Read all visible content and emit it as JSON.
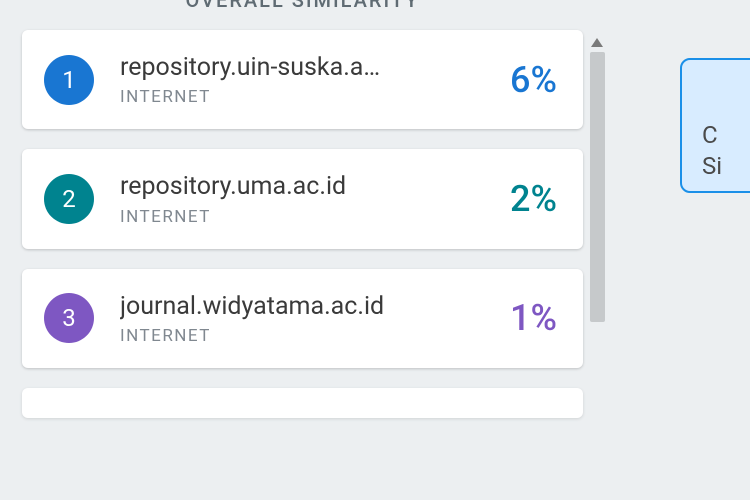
{
  "header": {
    "title": "OVERALL SIMILARITY"
  },
  "sources": [
    {
      "rank": "1",
      "url": "repository.uin-suska.a…",
      "type": "INTERNET",
      "percent": "6%",
      "badge_color": "#1976d2",
      "percent_color": "#1976d2"
    },
    {
      "rank": "2",
      "url": "repository.uma.ac.id",
      "type": "INTERNET",
      "percent": "2%",
      "badge_color": "#00838f",
      "percent_color": "#00838f"
    },
    {
      "rank": "3",
      "url": "journal.widyatama.ac.id",
      "type": "INTERNET",
      "percent": "1%",
      "badge_color": "#7e57c2",
      "percent_color": "#7e57c2"
    }
  ],
  "sidebox": {
    "line1": "C",
    "line2": "Si"
  },
  "colors": {
    "panel_bg": "#eceff1",
    "card_bg": "#ffffff",
    "sidebox_bg": "#d8ecff",
    "sidebox_border": "#1a8fe8"
  }
}
